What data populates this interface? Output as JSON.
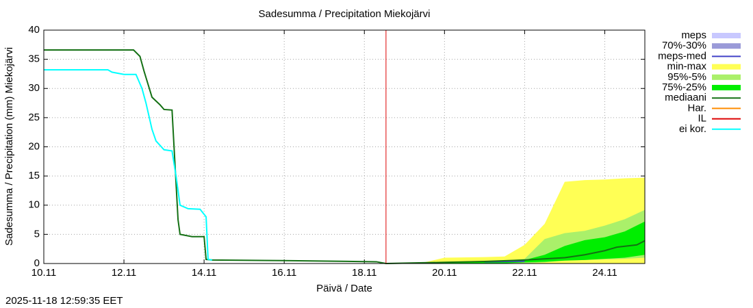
{
  "chart_data": {
    "type": "line",
    "title": "Sadesumma / Precipitation  Miekojärvi",
    "xlabel": "Päivä / Date",
    "ylabel": "Sadesumma / Precipitation (mm)  Miekojärvi",
    "footer": "2025-11-18 12:59:35 EET",
    "xlim": [
      10,
      25
    ],
    "ylim": [
      0,
      40
    ],
    "xticks": [
      {
        "value": 10,
        "label": "10.11"
      },
      {
        "value": 12,
        "label": "12.11"
      },
      {
        "value": 14,
        "label": "14.11"
      },
      {
        "value": 16,
        "label": "16.11"
      },
      {
        "value": 18,
        "label": "18.11"
      },
      {
        "value": 20,
        "label": "20.11"
      },
      {
        "value": 22,
        "label": "22.11"
      },
      {
        "value": 24,
        "label": "24.11"
      }
    ],
    "yticks": [
      0,
      5,
      10,
      15,
      20,
      25,
      30,
      35,
      40
    ],
    "grid": true,
    "legend": "right",
    "series": [
      {
        "name": "meps",
        "color": "#c8c8ff",
        "style": "band"
      },
      {
        "name": "70%-30%",
        "color": "#9a9ad8",
        "style": "band"
      },
      {
        "name": "meps-med",
        "color": "#4040c8",
        "style": "line",
        "x": [
          21.0,
          21.5,
          22.0
        ],
        "values": [
          0.3,
          0.35,
          0.4
        ]
      },
      {
        "name": "min-max",
        "color": "#ffff55",
        "style": "band",
        "x": [
          18.54,
          19.5,
          20,
          21,
          21.5,
          22,
          22.5,
          23,
          23.5,
          24,
          24.5,
          25
        ],
        "low": [
          0,
          0,
          0,
          0,
          0,
          0,
          0,
          0,
          0,
          0,
          0,
          0
        ],
        "high": [
          0,
          0.2,
          1.0,
          1.1,
          1.2,
          3.2,
          6.8,
          14,
          14.3,
          14.4,
          14.6,
          14.7
        ]
      },
      {
        "name": "95%-5%",
        "color": "#aaf06a",
        "style": "band",
        "x": [
          18.54,
          19.5,
          20,
          21,
          21.5,
          22,
          22.5,
          23,
          23.5,
          24,
          24.5,
          25
        ],
        "low": [
          0,
          0,
          0,
          0,
          0,
          0,
          0.2,
          0.5,
          0.6,
          0.7,
          0.8,
          1.0
        ],
        "high": [
          0,
          0.1,
          0.2,
          0.4,
          0.5,
          0.8,
          4.2,
          5.2,
          5.6,
          6.5,
          7.6,
          9.2
        ]
      },
      {
        "name": "75%-25%",
        "color": "#00ee00",
        "style": "band",
        "x": [
          18.54,
          19.5,
          20,
          21,
          21.5,
          22,
          22.5,
          23,
          23.5,
          24,
          24.5,
          25
        ],
        "low": [
          0,
          0,
          0,
          0,
          0.05,
          0.2,
          0.3,
          0.5,
          0.6,
          0.8,
          1.0,
          1.5
        ],
        "high": [
          0,
          0.05,
          0.1,
          0.3,
          0.4,
          0.6,
          1.5,
          3.0,
          4.0,
          4.5,
          5.5,
          7.2
        ]
      },
      {
        "name": "mediaani",
        "color": "#147014",
        "style": "line",
        "x": [
          10,
          12.24,
          12.4,
          12.5,
          12.7,
          12.9,
          13.0,
          13.2,
          13.25,
          13.35,
          13.4,
          13.7,
          14.0,
          14.05,
          14.2,
          16.0,
          18.3,
          18.54,
          20,
          21,
          22,
          23,
          23.5,
          24,
          24.3,
          24.8,
          25
        ],
        "values": [
          36.6,
          36.6,
          35.5,
          33,
          28.5,
          27.2,
          26.4,
          26.3,
          20,
          7.5,
          5,
          4.6,
          4.6,
          0.7,
          0.6,
          0.5,
          0.3,
          0,
          0.2,
          0.35,
          0.6,
          1.0,
          1.5,
          2.2,
          2.8,
          3.2,
          3.9
        ]
      },
      {
        "name": "Har.",
        "color": "#ff8c00",
        "style": "line"
      },
      {
        "name": "IL",
        "color": "#dd0000",
        "style": "line",
        "x": 18.54
      },
      {
        "name": "ei kor.",
        "color": "#00ffff",
        "style": "line",
        "x": [
          10,
          11.6,
          11.7,
          12.0,
          12.3,
          12.45,
          12.55,
          12.7,
          12.8,
          13.0,
          13.2,
          13.3,
          13.4,
          13.6,
          13.9,
          14.05,
          14.1,
          14.2
        ],
        "values": [
          33.2,
          33.2,
          32.8,
          32.4,
          32.4,
          30,
          27.5,
          23,
          21,
          19.5,
          19.3,
          15,
          10,
          9.4,
          9.3,
          8,
          0.7,
          0.6
        ]
      }
    ]
  }
}
